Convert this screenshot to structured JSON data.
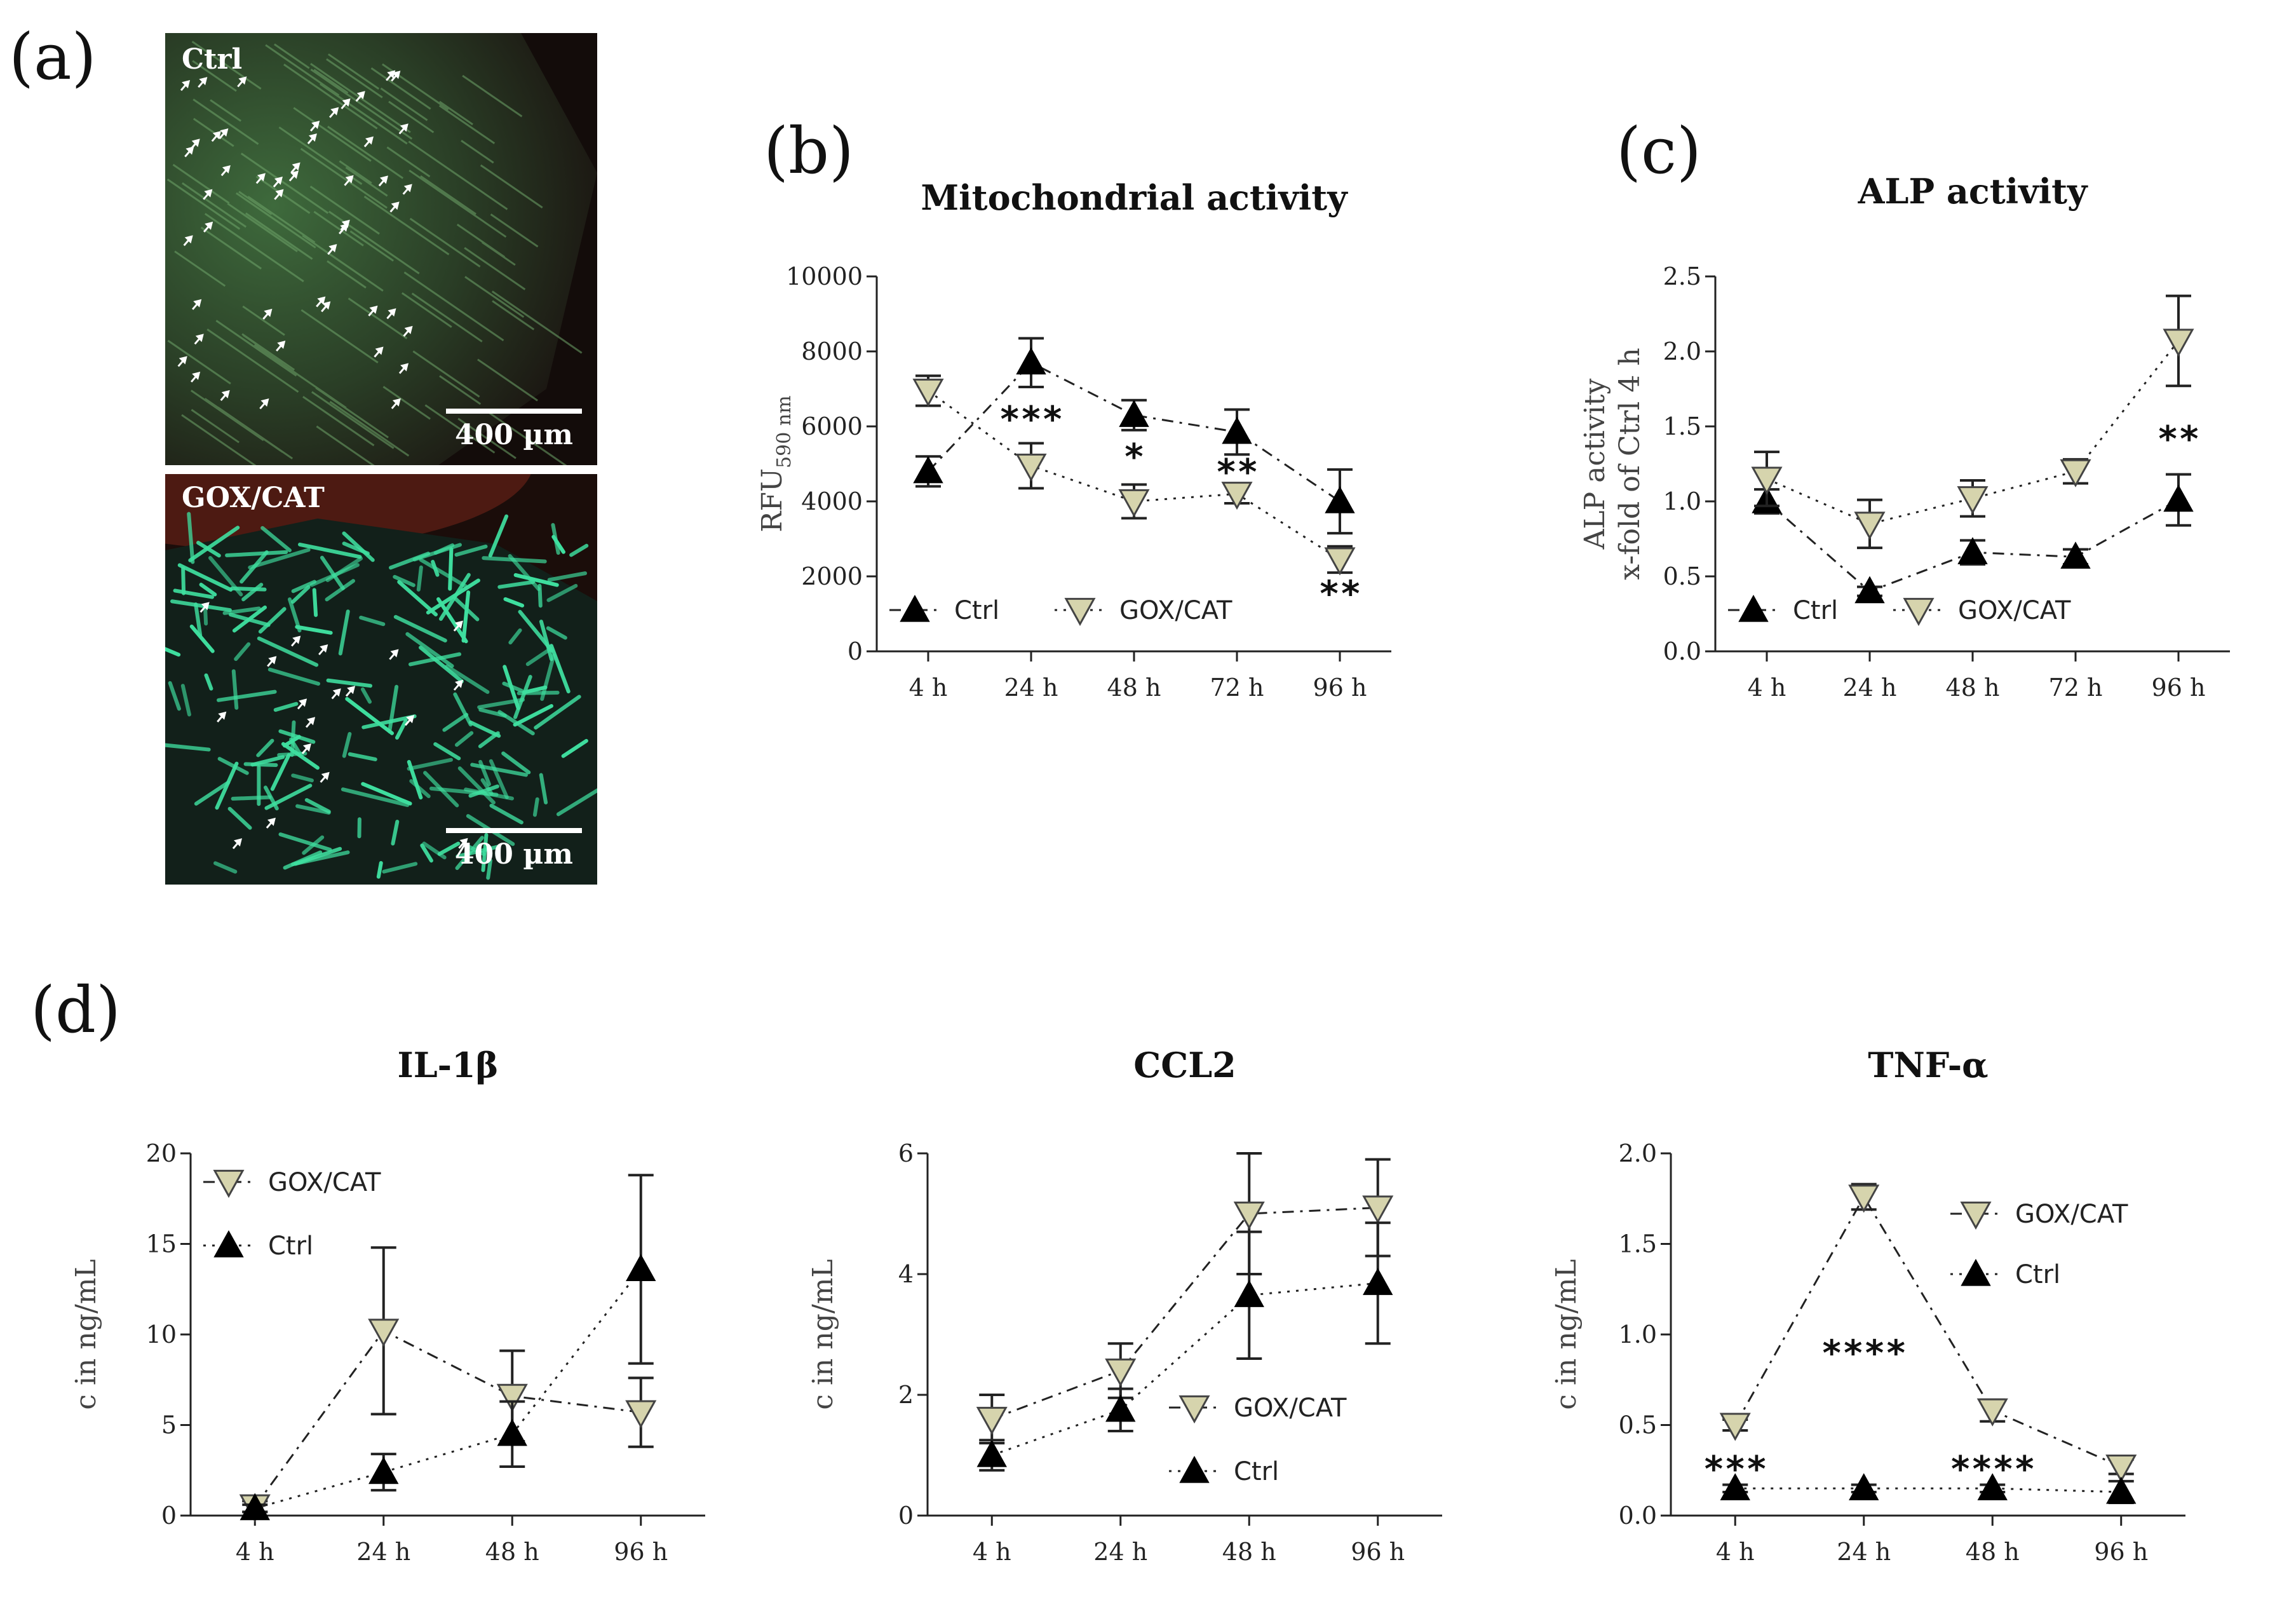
{
  "panels": {
    "a": "(a)",
    "b": "(b)",
    "c": "(c)",
    "d": "(d)"
  },
  "micrographs": {
    "top_label": "Ctrl",
    "bottom_label": "GOX/CAT",
    "scale_bar": "400 µm"
  },
  "colors": {
    "ctrl": "#000000",
    "gox_cat": "#d6d4ad",
    "gox_cat_edge": "#444444"
  },
  "chart_data": [
    {
      "id": "b",
      "type": "line",
      "title": "Mitochondrial activity",
      "ylabel": "RFU",
      "ylabel_subscript": "590 nm",
      "xlabel": "",
      "categories": [
        "4 h",
        "24 h",
        "48 h",
        "72 h",
        "96 h"
      ],
      "ylim": [
        0,
        10000
      ],
      "yticks": [
        "0",
        "2000",
        "4000",
        "6000",
        "8000",
        "10000"
      ],
      "series": [
        {
          "name": "Ctrl",
          "marker": "triangle-up",
          "line": "dash-dot",
          "values": [
            4800,
            7700,
            6300,
            5850,
            4000
          ],
          "err": [
            400,
            650,
            400,
            600,
            850
          ]
        },
        {
          "name": "GOX/CAT",
          "marker": "triangle-down",
          "line": "dotted",
          "values": [
            6950,
            4950,
            4000,
            4200,
            2450
          ],
          "err": [
            400,
            600,
            450,
            250,
            350
          ]
        }
      ],
      "legend": [
        "Ctrl",
        "GOX/CAT"
      ],
      "legend_position": "bottom-left",
      "annotations": [
        {
          "x": "24 h",
          "y": 6200,
          "text": "***"
        },
        {
          "x": "48 h",
          "y": 5200,
          "text": "*"
        },
        {
          "x": "72 h",
          "y": 4800,
          "text": "**"
        },
        {
          "x": "96 h",
          "y": 1550,
          "text": "**"
        }
      ]
    },
    {
      "id": "c",
      "type": "line",
      "title": "ALP activity",
      "ylabel": "ALP activity",
      "ylabel2": "x-fold of Ctrl 4 h",
      "categories": [
        "4 h",
        "24 h",
        "48 h",
        "72 h",
        "96 h"
      ],
      "ylim": [
        0,
        2.5
      ],
      "yticks": [
        "0.0",
        "0.5",
        "1.0",
        "1.5",
        "2.0",
        "2.5"
      ],
      "series": [
        {
          "name": "Ctrl",
          "marker": "triangle-up",
          "line": "dash-dot",
          "values": [
            1.0,
            0.4,
            0.66,
            0.63,
            1.01
          ],
          "err": [
            0.08,
            0.03,
            0.08,
            0.05,
            0.17
          ]
        },
        {
          "name": "GOX/CAT",
          "marker": "triangle-down",
          "line": "dotted",
          "values": [
            1.15,
            0.85,
            1.02,
            1.2,
            2.07
          ],
          "err": [
            0.18,
            0.16,
            0.12,
            0.08,
            0.3
          ]
        }
      ],
      "legend": [
        "Ctrl",
        "GOX/CAT"
      ],
      "legend_position": "bottom-left",
      "annotations": [
        {
          "x": "96 h",
          "y": 1.42,
          "text": "**"
        }
      ]
    },
    {
      "id": "d1",
      "type": "line",
      "title": "IL-1β",
      "ylabel": "c in ng/mL",
      "categories": [
        "4 h",
        "24 h",
        "48 h",
        "96 h"
      ],
      "ylim": [
        0,
        20
      ],
      "yticks": [
        "0",
        "5",
        "10",
        "15",
        "20"
      ],
      "series": [
        {
          "name": "GOX/CAT",
          "marker": "triangle-down",
          "line": "dash-dot",
          "values": [
            0.5,
            10.2,
            6.6,
            5.7
          ],
          "err": [
            0.3,
            4.6,
            2.5,
            1.9
          ]
        },
        {
          "name": "Ctrl",
          "marker": "triangle-up",
          "line": "dotted",
          "values": [
            0.4,
            2.4,
            4.5,
            13.6
          ],
          "err": [
            0.2,
            1.0,
            1.8,
            5.2
          ]
        }
      ],
      "legend": [
        "GOX/CAT",
        "Ctrl"
      ],
      "legend_position": "top-left",
      "annotations": []
    },
    {
      "id": "d2",
      "type": "line",
      "title": "CCL2",
      "ylabel": "c in ng/mL",
      "categories": [
        "4 h",
        "24 h",
        "48 h",
        "96 h"
      ],
      "ylim": [
        0,
        6
      ],
      "yticks": [
        "0",
        "2",
        "4",
        "6"
      ],
      "series": [
        {
          "name": "GOX/CAT",
          "marker": "triangle-down",
          "line": "dash-dot",
          "values": [
            1.6,
            2.4,
            5.0,
            5.1
          ],
          "err": [
            0.4,
            0.45,
            1.0,
            0.8
          ]
        },
        {
          "name": "Ctrl",
          "marker": "triangle-up",
          "line": "dotted",
          "values": [
            1.0,
            1.75,
            3.65,
            3.85
          ],
          "err": [
            0.25,
            0.35,
            1.05,
            1.0
          ]
        }
      ],
      "legend": [
        "GOX/CAT",
        "Ctrl"
      ],
      "legend_position": "bottom-right",
      "annotations": []
    },
    {
      "id": "d3",
      "type": "line",
      "title": "TNF-α",
      "ylabel": "c in ng/mL",
      "categories": [
        "4 h",
        "24 h",
        "48 h",
        "96 h"
      ],
      "ylim": [
        0,
        2.0
      ],
      "yticks": [
        "0.0",
        "0.5",
        "1.0",
        "1.5",
        "2.0"
      ],
      "series": [
        {
          "name": "GOX/CAT",
          "marker": "triangle-down",
          "line": "dash-dot",
          "values": [
            0.5,
            1.76,
            0.58,
            0.27
          ],
          "err": [
            0.03,
            0.07,
            0.06,
            0.04
          ]
        },
        {
          "name": "Ctrl",
          "marker": "triangle-up",
          "line": "dotted",
          "values": [
            0.15,
            0.15,
            0.15,
            0.13
          ],
          "err": [
            0.02,
            0.02,
            0.02,
            0.06
          ]
        }
      ],
      "legend": [
        "GOX/CAT",
        "Ctrl"
      ],
      "legend_position": "top-right",
      "annotations": [
        {
          "x": "4 h",
          "y": 0.26,
          "text": "***"
        },
        {
          "x": "24 h",
          "y": 0.9,
          "text": "****"
        },
        {
          "x": "48 h",
          "y": 0.26,
          "text": "****"
        }
      ]
    }
  ]
}
